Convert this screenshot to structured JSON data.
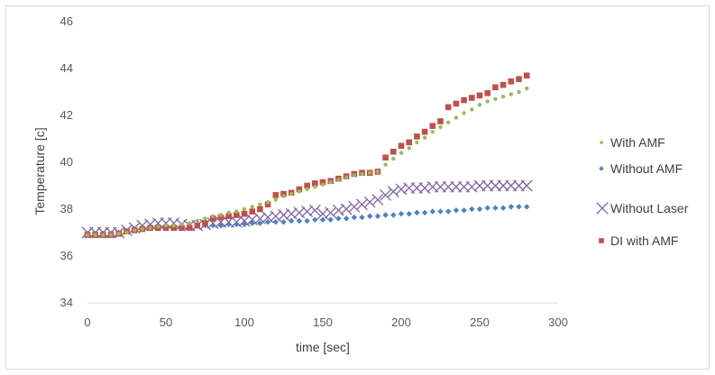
{
  "chart_data": {
    "type": "scatter",
    "title": "",
    "xlabel": "time [sec]",
    "ylabel": "Temperature [c]",
    "xlim": [
      0,
      300
    ],
    "ylim": [
      34,
      46
    ],
    "xticks": [
      0,
      50,
      100,
      150,
      200,
      250,
      300
    ],
    "yticks": [
      34,
      36,
      38,
      40,
      42,
      44,
      46
    ],
    "grid": false,
    "legend_position": "right",
    "series": [
      {
        "name": "With AMF",
        "marker": "dot",
        "color": "#9bbb59",
        "x": [
          0,
          5,
          10,
          15,
          20,
          25,
          30,
          35,
          40,
          45,
          50,
          55,
          60,
          65,
          70,
          75,
          80,
          85,
          90,
          95,
          100,
          105,
          110,
          115,
          120,
          125,
          130,
          135,
          140,
          145,
          150,
          155,
          160,
          165,
          170,
          175,
          180,
          185,
          190,
          195,
          200,
          205,
          210,
          215,
          220,
          225,
          230,
          235,
          240,
          245,
          250,
          255,
          260,
          265,
          270,
          275,
          280
        ],
        "y": [
          36.9,
          36.9,
          36.9,
          36.9,
          36.95,
          37.0,
          37.1,
          37.15,
          37.2,
          37.25,
          37.3,
          37.3,
          37.35,
          37.4,
          37.5,
          37.6,
          37.7,
          37.75,
          37.85,
          37.9,
          38.0,
          38.1,
          38.2,
          38.3,
          38.4,
          38.55,
          38.65,
          38.75,
          38.85,
          38.95,
          39.05,
          39.15,
          39.25,
          39.35,
          39.45,
          39.5,
          39.55,
          39.6,
          39.9,
          40.15,
          40.4,
          40.6,
          40.85,
          41.05,
          41.3,
          41.5,
          41.7,
          41.9,
          42.1,
          42.25,
          42.45,
          42.6,
          42.7,
          42.8,
          42.9,
          43.0,
          43.15
        ]
      },
      {
        "name": "Without AMF",
        "marker": "diamond",
        "color": "#4f81bd",
        "x": [
          0,
          5,
          10,
          15,
          20,
          25,
          30,
          35,
          40,
          45,
          50,
          55,
          60,
          65,
          70,
          75,
          80,
          85,
          90,
          95,
          100,
          105,
          110,
          115,
          120,
          125,
          130,
          135,
          140,
          145,
          150,
          155,
          160,
          165,
          170,
          175,
          180,
          185,
          190,
          195,
          200,
          205,
          210,
          215,
          220,
          225,
          230,
          235,
          240,
          245,
          250,
          255,
          260,
          265,
          270,
          275,
          280
        ],
        "y": [
          36.95,
          36.95,
          36.95,
          36.95,
          37.0,
          37.05,
          37.1,
          37.15,
          37.2,
          37.25,
          37.25,
          37.25,
          37.25,
          37.25,
          37.3,
          37.3,
          37.3,
          37.3,
          37.35,
          37.35,
          37.35,
          37.4,
          37.4,
          37.45,
          37.45,
          37.45,
          37.5,
          37.5,
          37.5,
          37.55,
          37.55,
          37.55,
          37.6,
          37.6,
          37.65,
          37.65,
          37.7,
          37.7,
          37.75,
          37.75,
          37.8,
          37.8,
          37.85,
          37.85,
          37.9,
          37.9,
          37.9,
          37.95,
          37.95,
          38.0,
          38.0,
          38.05,
          38.05,
          38.05,
          38.1,
          38.1,
          38.1
        ]
      },
      {
        "name": "Without Laser",
        "marker": "x",
        "color": "#8064a2",
        "x": [
          0,
          5,
          10,
          15,
          20,
          25,
          30,
          35,
          40,
          45,
          50,
          55,
          60,
          65,
          70,
          75,
          80,
          85,
          90,
          95,
          100,
          105,
          110,
          115,
          120,
          125,
          130,
          135,
          140,
          145,
          150,
          155,
          160,
          165,
          170,
          175,
          180,
          185,
          190,
          195,
          200,
          205,
          210,
          215,
          220,
          225,
          230,
          235,
          240,
          245,
          250,
          255,
          260,
          265,
          270,
          275,
          280
        ],
        "y": [
          37.0,
          37.0,
          37.0,
          37.0,
          37.0,
          37.1,
          37.2,
          37.3,
          37.35,
          37.4,
          37.4,
          37.4,
          37.35,
          37.3,
          37.3,
          37.35,
          37.4,
          37.45,
          37.45,
          37.45,
          37.5,
          37.55,
          37.6,
          37.65,
          37.7,
          37.75,
          37.8,
          37.85,
          37.9,
          37.95,
          37.8,
          37.85,
          37.95,
          38.0,
          38.1,
          38.2,
          38.3,
          38.4,
          38.6,
          38.75,
          38.85,
          38.9,
          38.9,
          38.9,
          38.95,
          38.95,
          38.95,
          38.95,
          38.95,
          38.95,
          39.0,
          39.0,
          39.0,
          39.0,
          39.0,
          39.0,
          39.0
        ]
      },
      {
        "name": "DI with AMF",
        "marker": "square",
        "color": "#c0504d",
        "x": [
          0,
          5,
          10,
          15,
          20,
          25,
          30,
          35,
          40,
          45,
          50,
          55,
          60,
          65,
          70,
          75,
          80,
          85,
          90,
          95,
          100,
          105,
          110,
          115,
          120,
          125,
          130,
          135,
          140,
          145,
          150,
          155,
          160,
          165,
          170,
          175,
          180,
          185,
          190,
          195,
          200,
          205,
          210,
          215,
          220,
          225,
          230,
          235,
          240,
          245,
          250,
          255,
          260,
          265,
          270,
          275,
          280
        ],
        "y": [
          36.9,
          36.9,
          36.9,
          36.9,
          36.95,
          37.05,
          37.1,
          37.15,
          37.2,
          37.2,
          37.2,
          37.2,
          37.2,
          37.2,
          37.3,
          37.4,
          37.6,
          37.65,
          37.7,
          37.75,
          37.8,
          37.9,
          38.0,
          38.2,
          38.6,
          38.65,
          38.7,
          38.85,
          39.0,
          39.1,
          39.15,
          39.2,
          39.3,
          39.4,
          39.5,
          39.55,
          39.55,
          39.6,
          40.2,
          40.45,
          40.7,
          40.85,
          41.1,
          41.3,
          41.55,
          41.75,
          42.35,
          42.5,
          42.65,
          42.75,
          42.85,
          42.95,
          43.2,
          43.3,
          43.45,
          43.55,
          43.7
        ]
      }
    ]
  }
}
